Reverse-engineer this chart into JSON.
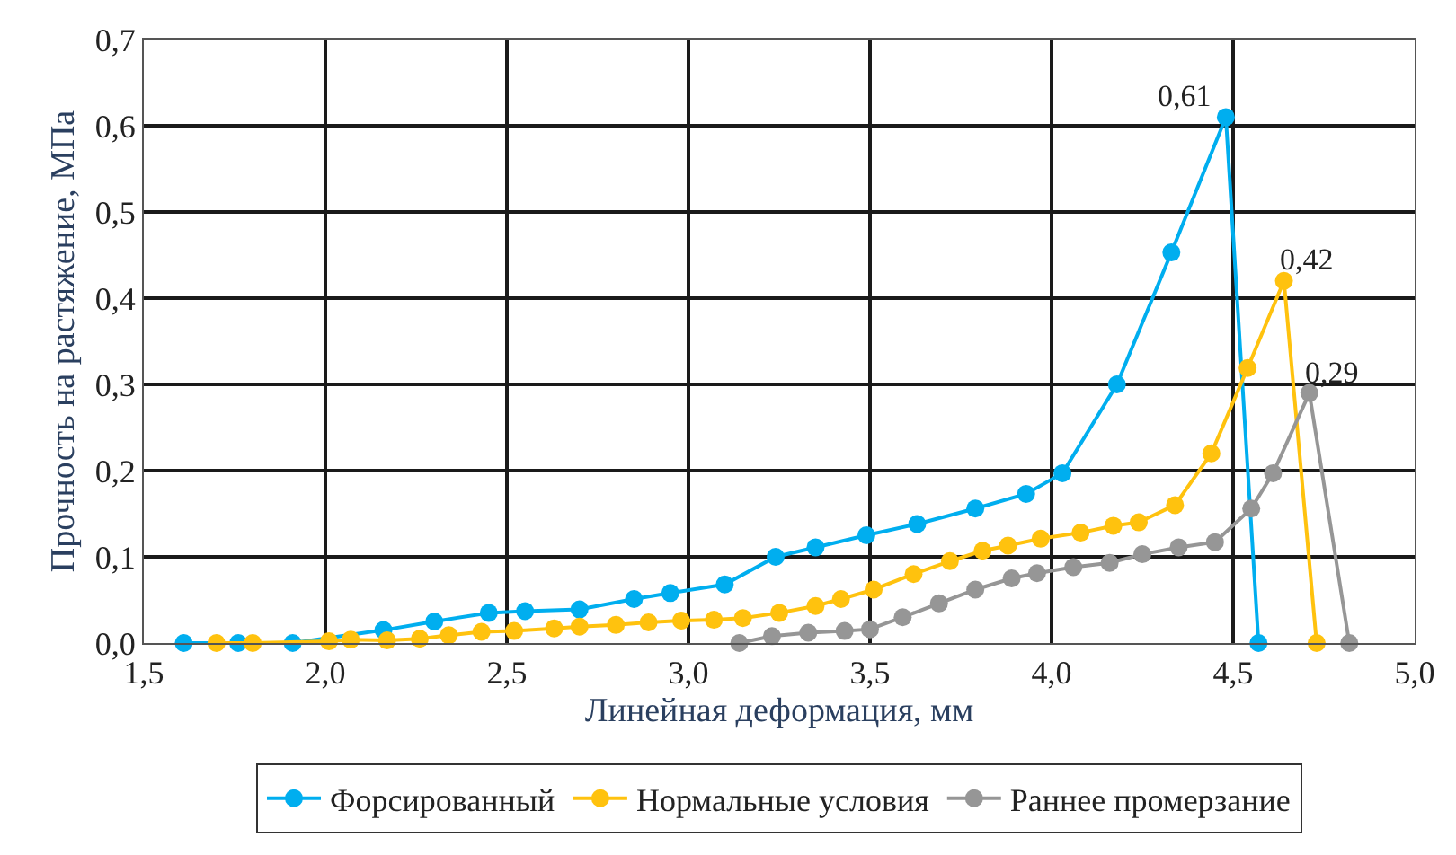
{
  "chart_data": {
    "type": "line",
    "xlabel": "Линейная деформация, мм",
    "ylabel": "Прочность на растяжение, МПа",
    "xlim": [
      1.5,
      5.0
    ],
    "ylim": [
      0,
      0.7
    ],
    "xticks": [
      {
        "value": 1.5,
        "label": "1,5"
      },
      {
        "value": 2.0,
        "label": "2,0"
      },
      {
        "value": 2.5,
        "label": "2,5"
      },
      {
        "value": 3.0,
        "label": "3,0"
      },
      {
        "value": 3.5,
        "label": "3,5"
      },
      {
        "value": 4.0,
        "label": "4,0"
      },
      {
        "value": 4.5,
        "label": "4,5"
      },
      {
        "value": 5.0,
        "label": "5,0"
      }
    ],
    "yticks": [
      {
        "value": 0,
        "label": "0,0"
      },
      {
        "value": 0.1,
        "label": "0,1"
      },
      {
        "value": 0.2,
        "label": "0,2"
      },
      {
        "value": 0.3,
        "label": "0,3"
      },
      {
        "value": 0.4,
        "label": "0,4"
      },
      {
        "value": 0.5,
        "label": "0,5"
      },
      {
        "value": 0.6,
        "label": "0,6"
      },
      {
        "value": 0.7,
        "label": "0,7"
      }
    ],
    "grid": true,
    "legend": "bottom",
    "marker": "circle",
    "line_style": "solid",
    "series": [
      {
        "name": "Форсированный",
        "color": "#00aeef",
        "x": [
          1.61,
          1.76,
          1.91,
          2.16,
          2.3,
          2.45,
          2.55,
          2.7,
          2.85,
          2.95,
          3.1,
          3.24,
          3.35,
          3.49,
          3.63,
          3.79,
          3.93,
          4.03,
          4.18,
          4.33,
          4.48,
          4.57
        ],
        "values": [
          0,
          0,
          0,
          0.015,
          0.025,
          0.035,
          0.037,
          0.039,
          0.051,
          0.058,
          0.068,
          0.1,
          0.111,
          0.125,
          0.138,
          0.156,
          0.173,
          0.197,
          0.3,
          0.453,
          0.61,
          0
        ]
      },
      {
        "name": "Нормальные условия",
        "color": "#ffc20e",
        "x": [
          1.7,
          1.8,
          2.01,
          2.07,
          2.17,
          2.26,
          2.34,
          2.43,
          2.52,
          2.63,
          2.7,
          2.8,
          2.89,
          2.98,
          3.07,
          3.15,
          3.25,
          3.35,
          3.42,
          3.51,
          3.62,
          3.72,
          3.81,
          3.88,
          3.97,
          4.08,
          4.17,
          4.24,
          4.34,
          4.44,
          4.54,
          4.64,
          4.73
        ],
        "values": [
          0,
          0,
          0.002,
          0.004,
          0.003,
          0.005,
          0.009,
          0.013,
          0.014,
          0.017,
          0.019,
          0.021,
          0.024,
          0.026,
          0.027,
          0.029,
          0.035,
          0.043,
          0.051,
          0.062,
          0.08,
          0.095,
          0.107,
          0.113,
          0.121,
          0.128,
          0.136,
          0.14,
          0.16,
          0.22,
          0.319,
          0.42,
          0
        ]
      },
      {
        "name": "Раннее промерзание",
        "color": "#969696",
        "x": [
          3.14,
          3.23,
          3.33,
          3.43,
          3.5,
          3.59,
          3.69,
          3.79,
          3.89,
          3.96,
          4.06,
          4.16,
          4.25,
          4.35,
          4.45,
          4.55,
          4.61,
          4.71,
          4.82
        ],
        "values": [
          0,
          0.008,
          0.012,
          0.014,
          0.016,
          0.03,
          0.046,
          0.062,
          0.075,
          0.081,
          0.088,
          0.093,
          0.103,
          0.111,
          0.117,
          0.156,
          0.197,
          0.29,
          0
        ]
      }
    ],
    "annotations": [
      {
        "text": "0,61",
        "x": 4.48,
        "y": 0.61
      },
      {
        "text": "0,42",
        "x": 4.64,
        "y": 0.42
      },
      {
        "text": "0,29",
        "x": 4.71,
        "y": 0.29
      }
    ]
  }
}
